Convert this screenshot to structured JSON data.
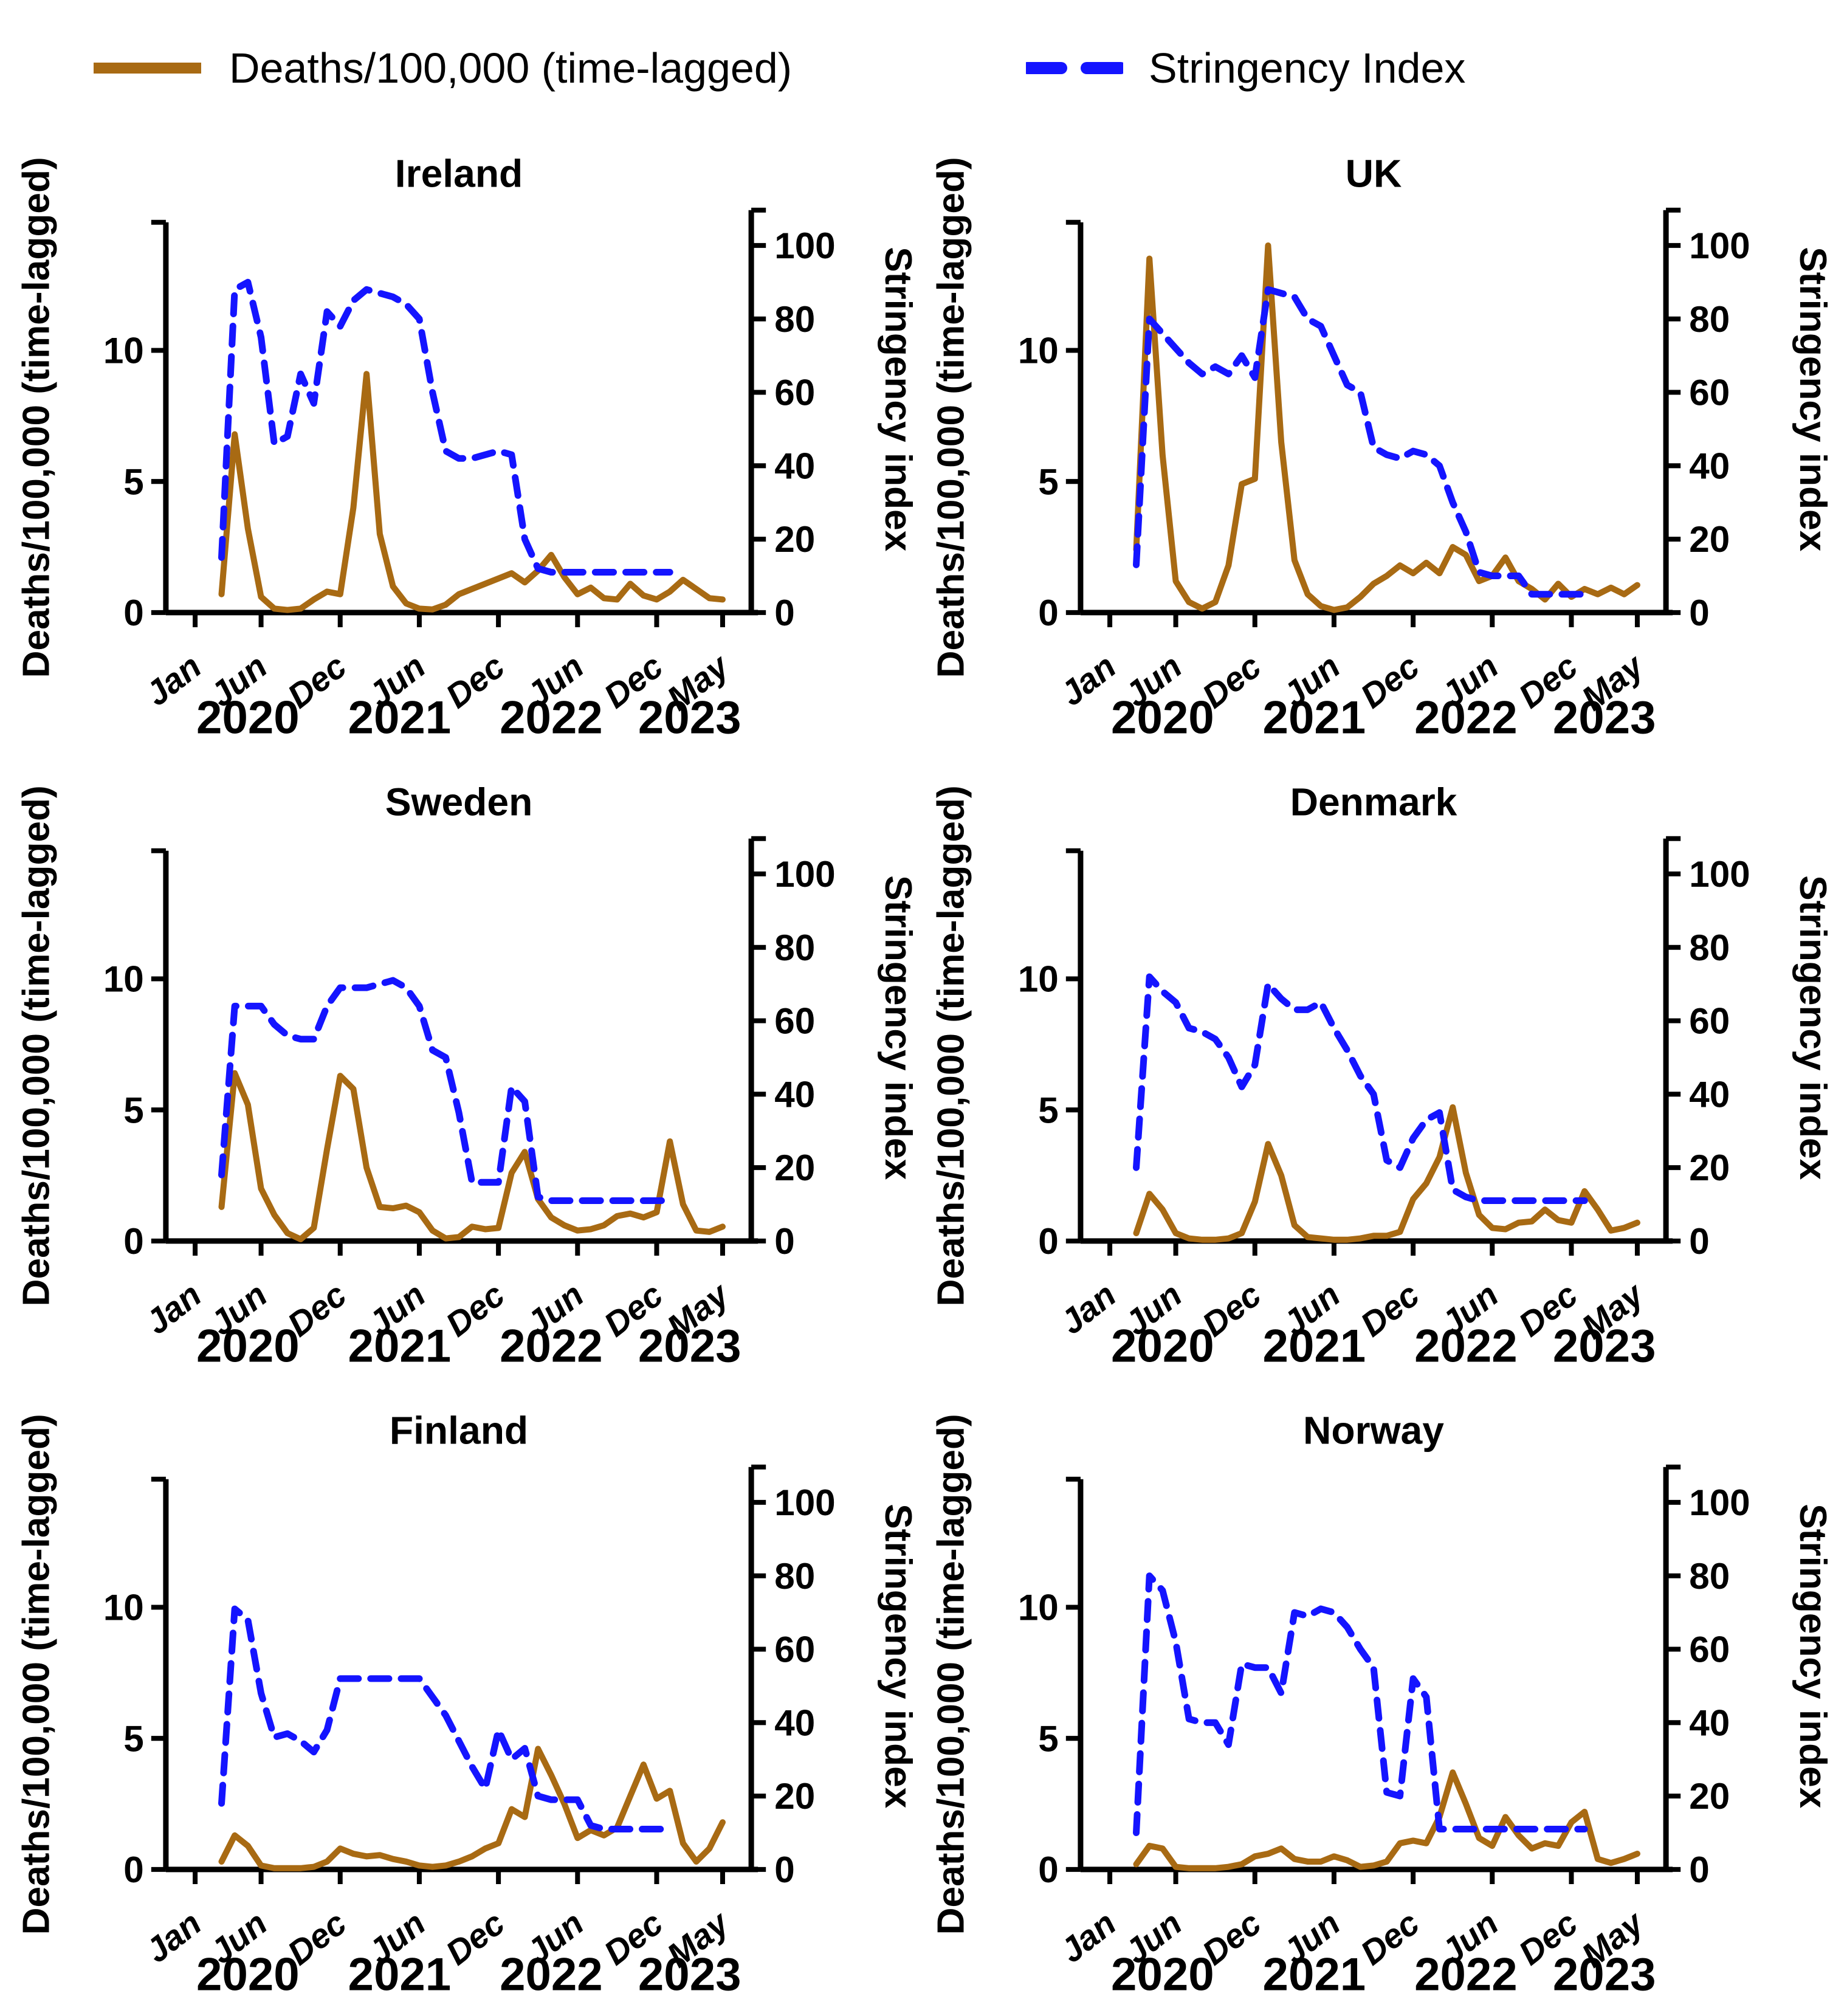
{
  "legend": {
    "deaths_label": "Deaths/100,000 (time-lagged)",
    "stringency_label": "Stringency Index"
  },
  "colors": {
    "deaths": "#A86A13",
    "stringency": "#1414FF",
    "axis": "#000000"
  },
  "axes": {
    "left_label": "Deaths/100,000 (time-lagged)",
    "right_label": "Stringency index",
    "left_ticks": [
      0,
      5,
      10
    ],
    "right_ticks": [
      0,
      20,
      40,
      60,
      80,
      100
    ],
    "x_tick_months": [
      0,
      5,
      11,
      17,
      23,
      29,
      35,
      40
    ],
    "x_tick_labels": [
      "Jan",
      "Jun",
      "Dec",
      "Jun",
      "Dec",
      "Jun",
      "Dec",
      "May"
    ],
    "year_labels": [
      "2020",
      "2021",
      "2022",
      "2023"
    ],
    "year_month_pos": [
      4,
      15.5,
      27,
      37.5
    ],
    "x_range_months": [
      0,
      40
    ],
    "left_range": [
      0,
      15
    ],
    "right_range": [
      0,
      110
    ]
  },
  "chart_data": [
    {
      "type": "line",
      "country": "Ireland",
      "x_unit": "months from Jan 2020 (index 0 = Jan 2020, 40 = May 2023)",
      "series": [
        {
          "name": "Deaths/100,000 (time-lagged)",
          "color_key": "deaths",
          "style": "solid",
          "axis": "left",
          "values": [
            null,
            null,
            0.7,
            6.8,
            3.2,
            0.6,
            0.15,
            0.1,
            0.15,
            0.5,
            0.8,
            0.7,
            4.0,
            9.1,
            3.0,
            1.0,
            0.35,
            0.15,
            0.12,
            0.3,
            0.7,
            0.9,
            1.1,
            1.3,
            1.5,
            1.15,
            1.6,
            2.2,
            1.35,
            0.7,
            0.95,
            0.55,
            0.5,
            1.1,
            0.65,
            0.5,
            0.8,
            1.25,
            0.9,
            0.55,
            0.5
          ]
        },
        {
          "name": "Stringency Index",
          "color_key": "stringency",
          "style": "dashed",
          "axis": "right",
          "values": [
            null,
            null,
            15,
            88,
            90,
            75,
            46,
            48,
            65,
            57,
            82,
            78,
            85,
            88,
            87,
            86,
            84,
            80,
            60,
            44,
            42,
            42,
            43,
            44,
            43,
            20,
            12,
            11,
            11,
            11,
            11,
            11,
            11,
            11,
            11,
            11,
            11,
            null,
            null,
            null,
            null
          ]
        }
      ]
    },
    {
      "type": "line",
      "country": "UK",
      "x_unit": "months from Jan 2020 (index 0 = Jan 2020, 40 = May 2023)",
      "series": [
        {
          "name": "Deaths/100,000 (time-lagged)",
          "color_key": "deaths",
          "style": "solid",
          "axis": "left",
          "values": [
            null,
            null,
            2.4,
            13.5,
            6.0,
            1.2,
            0.4,
            0.15,
            0.4,
            1.8,
            4.9,
            5.1,
            14.0,
            6.5,
            2.0,
            0.7,
            0.25,
            0.1,
            0.2,
            0.6,
            1.1,
            1.4,
            1.8,
            1.5,
            1.9,
            1.5,
            2.5,
            2.2,
            1.2,
            1.4,
            2.1,
            1.2,
            0.9,
            0.5,
            1.1,
            0.6,
            0.9,
            0.7,
            0.95,
            0.7,
            1.05
          ]
        },
        {
          "name": "Stringency Index",
          "color_key": "stringency",
          "style": "dashed",
          "axis": "right",
          "values": [
            null,
            null,
            13,
            80,
            76,
            72,
            68,
            65,
            67,
            65,
            70,
            64,
            88,
            87,
            86,
            80,
            78,
            70,
            62,
            60,
            45,
            43,
            42,
            44,
            43,
            40,
            30,
            22,
            11,
            10,
            10,
            10,
            5,
            5,
            5,
            5,
            5,
            null,
            null,
            null,
            null
          ]
        }
      ]
    },
    {
      "type": "line",
      "country": "Sweden",
      "x_unit": "months from Jan 2020 (index 0 = Jan 2020, 40 = May 2023)",
      "series": [
        {
          "name": "Deaths/100,000 (time-lagged)",
          "color_key": "deaths",
          "style": "solid",
          "axis": "left",
          "values": [
            null,
            null,
            1.3,
            6.4,
            5.2,
            2.0,
            1.0,
            0.3,
            0.07,
            0.5,
            3.5,
            6.3,
            5.8,
            2.8,
            1.3,
            1.25,
            1.35,
            1.1,
            0.4,
            0.1,
            0.15,
            0.55,
            0.45,
            0.5,
            2.6,
            3.4,
            1.6,
            0.9,
            0.6,
            0.4,
            0.45,
            0.6,
            0.95,
            1.05,
            0.9,
            1.1,
            3.8,
            1.4,
            0.4,
            0.35,
            0.55
          ]
        },
        {
          "name": "Stringency Index",
          "color_key": "stringency",
          "style": "dashed",
          "axis": "right",
          "values": [
            null,
            null,
            18,
            64,
            64,
            64,
            59,
            56,
            55,
            55,
            64,
            69,
            69,
            69,
            70,
            71,
            69,
            64,
            52,
            50,
            35,
            16,
            16,
            16,
            42,
            38,
            12,
            11,
            11,
            11,
            11,
            11,
            11,
            11,
            11,
            11,
            11,
            null,
            null,
            null,
            null
          ]
        }
      ]
    },
    {
      "type": "line",
      "country": "Denmark",
      "x_unit": "months from Jan 2020 (index 0 = Jan 2020, 40 = May 2023)",
      "series": [
        {
          "name": "Deaths/100,000 (time-lagged)",
          "color_key": "deaths",
          "style": "solid",
          "axis": "left",
          "values": [
            null,
            null,
            0.3,
            1.8,
            1.2,
            0.3,
            0.1,
            0.05,
            0.05,
            0.1,
            0.3,
            1.5,
            3.7,
            2.5,
            0.6,
            0.15,
            0.1,
            0.05,
            0.05,
            0.1,
            0.2,
            0.2,
            0.35,
            1.6,
            2.2,
            3.2,
            5.1,
            2.6,
            1.0,
            0.5,
            0.45,
            0.7,
            0.75,
            1.2,
            0.8,
            0.7,
            1.9,
            1.2,
            0.4,
            0.5,
            0.7
          ]
        },
        {
          "name": "Stringency Index",
          "color_key": "stringency",
          "style": "dashed",
          "axis": "right",
          "values": [
            null,
            null,
            20,
            72,
            68,
            65,
            58,
            57,
            55,
            50,
            42,
            48,
            70,
            66,
            63,
            63,
            65,
            58,
            52,
            45,
            40,
            22,
            20,
            28,
            33,
            35,
            14,
            12,
            11,
            11,
            11,
            11,
            11,
            11,
            11,
            11,
            11,
            null,
            null,
            null,
            null
          ]
        }
      ]
    },
    {
      "type": "line",
      "country": "Finland",
      "x_unit": "months from Jan 2020 (index 0 = Jan 2020, 40 = May 2023)",
      "series": [
        {
          "name": "Deaths/100,000 (time-lagged)",
          "color_key": "deaths",
          "style": "solid",
          "axis": "left",
          "values": [
            null,
            null,
            0.3,
            1.3,
            0.9,
            0.15,
            0.05,
            0.05,
            0.05,
            0.1,
            0.3,
            0.8,
            0.6,
            0.5,
            0.55,
            0.4,
            0.3,
            0.15,
            0.1,
            0.15,
            0.3,
            0.5,
            0.8,
            1.0,
            2.3,
            2.0,
            4.6,
            3.6,
            2.5,
            1.2,
            1.5,
            1.3,
            1.6,
            2.8,
            4.0,
            2.7,
            3.0,
            1.0,
            0.3,
            0.8,
            1.8
          ]
        },
        {
          "name": "Stringency Index",
          "color_key": "stringency",
          "style": "dashed",
          "axis": "right",
          "values": [
            null,
            null,
            18,
            71,
            68,
            48,
            36,
            37,
            35,
            32,
            38,
            52,
            52,
            52,
            52,
            52,
            52,
            52,
            47,
            42,
            35,
            28,
            22,
            38,
            30,
            33,
            20,
            19,
            19,
            19,
            12,
            11,
            11,
            11,
            11,
            11,
            11,
            null,
            null,
            null,
            null
          ]
        }
      ]
    },
    {
      "type": "line",
      "country": "Norway",
      "x_unit": "months from Jan 2020 (index 0 = Jan 2020, 40 = May 2023)",
      "series": [
        {
          "name": "Deaths/100,000 (time-lagged)",
          "color_key": "deaths",
          "style": "solid",
          "axis": "left",
          "values": [
            null,
            null,
            0.2,
            0.9,
            0.8,
            0.1,
            0.05,
            0.05,
            0.05,
            0.1,
            0.2,
            0.5,
            0.6,
            0.8,
            0.4,
            0.3,
            0.3,
            0.5,
            0.35,
            0.1,
            0.15,
            0.3,
            1.0,
            1.1,
            1.0,
            2.0,
            3.7,
            2.5,
            1.2,
            0.9,
            2.0,
            1.3,
            0.8,
            1.0,
            0.9,
            1.8,
            2.2,
            0.4,
            0.25,
            0.4,
            0.6
          ]
        },
        {
          "name": "Stringency Index",
          "color_key": "stringency",
          "style": "dashed",
          "axis": "right",
          "values": [
            null,
            null,
            10,
            80,
            76,
            62,
            41,
            40,
            40,
            34,
            56,
            55,
            55,
            48,
            70,
            69,
            71,
            70,
            66,
            60,
            55,
            21,
            20,
            52,
            47,
            11,
            11,
            11,
            11,
            11,
            11,
            11,
            11,
            11,
            11,
            11,
            11,
            null,
            null,
            null,
            null
          ]
        }
      ]
    }
  ]
}
